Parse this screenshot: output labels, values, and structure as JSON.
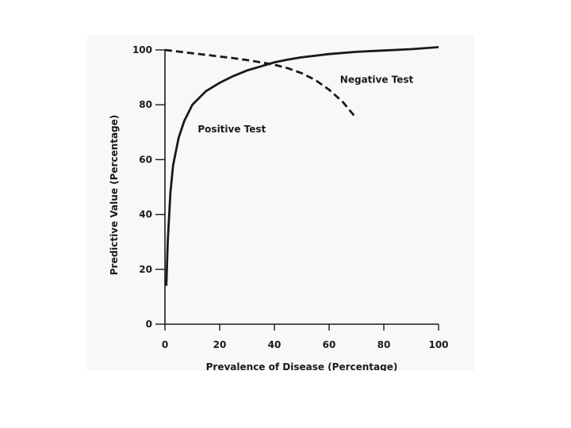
{
  "chart_data": {
    "type": "line",
    "title": "",
    "xlabel": "Prevalence of Disease (Percentage)",
    "ylabel": "Predictive Value (Percentage)",
    "xlim": [
      0,
      100
    ],
    "ylim": [
      0,
      100
    ],
    "x_ticks": [
      0,
      20,
      40,
      60,
      80,
      100
    ],
    "y_ticks": [
      0,
      20,
      40,
      60,
      80,
      100
    ],
    "x_tick_labels": [
      "0",
      "20",
      "40",
      "60",
      "80",
      "100"
    ],
    "y_tick_labels": [
      "0",
      "20",
      "40",
      "60",
      "80",
      "100"
    ],
    "grid": false,
    "legend": "none",
    "series": [
      {
        "name": "Positive Test",
        "line_style": "solid",
        "x": [
          0.5,
          1,
          2,
          3,
          5,
          7,
          10,
          15,
          20,
          25,
          30,
          35,
          40,
          45,
          50,
          60,
          70,
          80,
          90,
          100
        ],
        "y": [
          14,
          30,
          48,
          58,
          68,
          74,
          80,
          85,
          88,
          90.5,
          92.5,
          94,
          95.5,
          96.5,
          97.3,
          98.5,
          99.3,
          99.8,
          100.3,
          101
        ]
      },
      {
        "name": "Negative Test",
        "line_style": "dashed",
        "x": [
          0,
          5,
          10,
          15,
          20,
          25,
          30,
          35,
          40,
          45,
          50,
          55,
          60,
          65,
          70
        ],
        "y": [
          100,
          99.4,
          98.8,
          98.2,
          97.6,
          97,
          96.3,
          95.5,
          94.6,
          93.3,
          91.5,
          89,
          85.5,
          81,
          75
        ]
      }
    ],
    "annotations": [
      {
        "text": "Positive Test",
        "x": 12,
        "y": 70
      },
      {
        "text": "Negative Test",
        "x": 64,
        "y": 88
      }
    ]
  }
}
